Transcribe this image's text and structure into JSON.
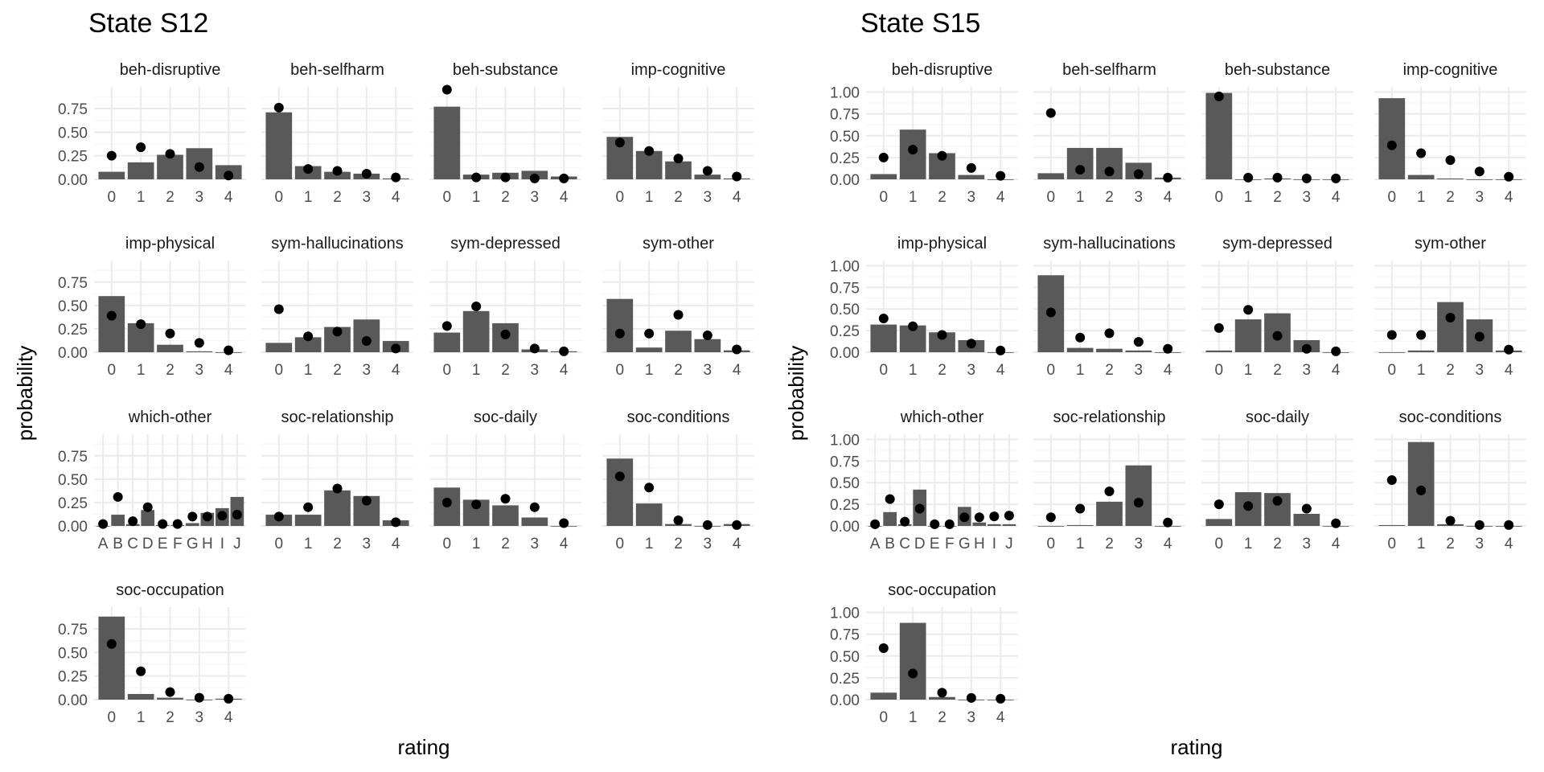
{
  "figure": {
    "ylabel": "probability",
    "xlabel": "rating",
    "colors": {
      "bar": "#595959",
      "dot": "#000000",
      "grid_major": "#ebebeb",
      "grid_minor": "#f5f5f5",
      "text": "#4d4d4d",
      "strip_text": "#1a1a1a"
    }
  },
  "chart_data": [
    {
      "type": "bar",
      "title": "State S12",
      "xlabel": "rating",
      "ylabel": "probability",
      "ylim": [
        0,
        0.98
      ],
      "yticks": [
        0,
        0.25,
        0.5,
        0.75
      ],
      "ytick_labels": [
        "0.00",
        "0.25",
        "0.50",
        "0.75"
      ],
      "grid": true,
      "facets": [
        {
          "name": "beh-disruptive",
          "categories": [
            "0",
            "1",
            "2",
            "3",
            "4"
          ],
          "bars": [
            0.08,
            0.18,
            0.26,
            0.33,
            0.15
          ],
          "points": [
            0.25,
            0.34,
            0.27,
            0.13,
            0.04
          ]
        },
        {
          "name": "beh-selfharm",
          "categories": [
            "0",
            "1",
            "2",
            "3",
            "4"
          ],
          "bars": [
            0.71,
            0.14,
            0.08,
            0.06,
            0.01
          ],
          "points": [
            0.76,
            0.11,
            0.09,
            0.06,
            0.02
          ]
        },
        {
          "name": "beh-substance",
          "categories": [
            "0",
            "1",
            "2",
            "3",
            "4"
          ],
          "bars": [
            0.77,
            0.05,
            0.07,
            0.09,
            0.03
          ],
          "points": [
            0.95,
            0.02,
            0.02,
            0.01,
            0.01
          ]
        },
        {
          "name": "imp-cognitive",
          "categories": [
            "0",
            "1",
            "2",
            "3",
            "4"
          ],
          "bars": [
            0.45,
            0.3,
            0.19,
            0.05,
            0.01
          ],
          "points": [
            0.39,
            0.3,
            0.22,
            0.09,
            0.03
          ]
        },
        {
          "name": "imp-physical",
          "categories": [
            "0",
            "1",
            "2",
            "3",
            "4"
          ],
          "bars": [
            0.6,
            0.31,
            0.08,
            0.01,
            0.0
          ],
          "points": [
            0.39,
            0.3,
            0.2,
            0.1,
            0.02
          ]
        },
        {
          "name": "sym-hallucinations",
          "categories": [
            "0",
            "1",
            "2",
            "3",
            "4"
          ],
          "bars": [
            0.1,
            0.16,
            0.27,
            0.35,
            0.12
          ],
          "points": [
            0.46,
            0.17,
            0.22,
            0.12,
            0.04
          ]
        },
        {
          "name": "sym-depressed",
          "categories": [
            "0",
            "1",
            "2",
            "3",
            "4"
          ],
          "bars": [
            0.21,
            0.44,
            0.31,
            0.03,
            0.01
          ],
          "points": [
            0.28,
            0.49,
            0.19,
            0.04,
            0.01
          ]
        },
        {
          "name": "sym-other",
          "categories": [
            "0",
            "1",
            "2",
            "3",
            "4"
          ],
          "bars": [
            0.57,
            0.05,
            0.23,
            0.14,
            0.02
          ],
          "points": [
            0.2,
            0.2,
            0.4,
            0.18,
            0.03
          ]
        },
        {
          "name": "which-other",
          "categories": [
            "A",
            "B",
            "C",
            "D",
            "E",
            "F",
            "G",
            "H",
            "I",
            "J"
          ],
          "bars": [
            0.0,
            0.12,
            0.02,
            0.17,
            0.01,
            0.01,
            0.03,
            0.14,
            0.19,
            0.31
          ],
          "points": [
            0.02,
            0.31,
            0.05,
            0.2,
            0.02,
            0.02,
            0.1,
            0.1,
            0.11,
            0.12
          ]
        },
        {
          "name": "soc-relationship",
          "categories": [
            "0",
            "1",
            "2",
            "3",
            "4"
          ],
          "bars": [
            0.12,
            0.12,
            0.38,
            0.32,
            0.06
          ],
          "points": [
            0.1,
            0.2,
            0.4,
            0.27,
            0.04
          ]
        },
        {
          "name": "soc-daily",
          "categories": [
            "0",
            "1",
            "2",
            "3",
            "4"
          ],
          "bars": [
            0.41,
            0.28,
            0.22,
            0.09,
            0.0
          ],
          "points": [
            0.25,
            0.23,
            0.29,
            0.2,
            0.03
          ]
        },
        {
          "name": "soc-conditions",
          "categories": [
            "0",
            "1",
            "2",
            "3",
            "4"
          ],
          "bars": [
            0.72,
            0.24,
            0.02,
            0.0,
            0.02
          ],
          "points": [
            0.53,
            0.41,
            0.06,
            0.01,
            0.01
          ]
        },
        {
          "name": "soc-occupation",
          "categories": [
            "0",
            "1",
            "2",
            "3",
            "4"
          ],
          "bars": [
            0.88,
            0.06,
            0.02,
            0.0,
            0.01
          ],
          "points": [
            0.59,
            0.3,
            0.08,
            0.02,
            0.01
          ]
        }
      ]
    },
    {
      "type": "bar",
      "title": "State S15",
      "xlabel": "rating",
      "ylabel": "probability",
      "ylim": [
        0,
        1.06
      ],
      "yticks": [
        0,
        0.25,
        0.5,
        0.75,
        1.0
      ],
      "ytick_labels": [
        "0.00",
        "0.25",
        "0.50",
        "0.75",
        "1.00"
      ],
      "grid": true,
      "facets": [
        {
          "name": "beh-disruptive",
          "categories": [
            "0",
            "1",
            "2",
            "3",
            "4"
          ],
          "bars": [
            0.06,
            0.57,
            0.3,
            0.05,
            0.0
          ],
          "points": [
            0.25,
            0.34,
            0.27,
            0.13,
            0.04
          ]
        },
        {
          "name": "beh-selfharm",
          "categories": [
            "0",
            "1",
            "2",
            "3",
            "4"
          ],
          "bars": [
            0.07,
            0.36,
            0.36,
            0.19,
            0.02
          ],
          "points": [
            0.76,
            0.11,
            0.09,
            0.06,
            0.02
          ]
        },
        {
          "name": "beh-substance",
          "categories": [
            "0",
            "1",
            "2",
            "3",
            "4"
          ],
          "bars": [
            0.99,
            0.0,
            0.01,
            0.0,
            0.0
          ],
          "points": [
            0.95,
            0.02,
            0.02,
            0.01,
            0.01
          ]
        },
        {
          "name": "imp-cognitive",
          "categories": [
            "0",
            "1",
            "2",
            "3",
            "4"
          ],
          "bars": [
            0.93,
            0.05,
            0.01,
            0.0,
            0.0
          ],
          "points": [
            0.39,
            0.3,
            0.22,
            0.09,
            0.03
          ]
        },
        {
          "name": "imp-physical",
          "categories": [
            "0",
            "1",
            "2",
            "3",
            "4"
          ],
          "bars": [
            0.32,
            0.31,
            0.23,
            0.14,
            0.0
          ],
          "points": [
            0.39,
            0.3,
            0.2,
            0.1,
            0.02
          ]
        },
        {
          "name": "sym-hallucinations",
          "categories": [
            "0",
            "1",
            "2",
            "3",
            "4"
          ],
          "bars": [
            0.89,
            0.05,
            0.04,
            0.02,
            0.0
          ],
          "points": [
            0.46,
            0.17,
            0.22,
            0.12,
            0.04
          ]
        },
        {
          "name": "sym-depressed",
          "categories": [
            "0",
            "1",
            "2",
            "3",
            "4"
          ],
          "bars": [
            0.02,
            0.38,
            0.45,
            0.14,
            0.0
          ],
          "points": [
            0.28,
            0.49,
            0.19,
            0.04,
            0.01
          ]
        },
        {
          "name": "sym-other",
          "categories": [
            "0",
            "1",
            "2",
            "3",
            "4"
          ],
          "bars": [
            0.0,
            0.02,
            0.58,
            0.38,
            0.02
          ],
          "points": [
            0.2,
            0.2,
            0.4,
            0.18,
            0.03
          ]
        },
        {
          "name": "which-other",
          "categories": [
            "A",
            "B",
            "C",
            "D",
            "E",
            "F",
            "G",
            "H",
            "I",
            "J"
          ],
          "bars": [
            0.0,
            0.16,
            0.02,
            0.42,
            0.0,
            0.0,
            0.22,
            0.04,
            0.02,
            0.02
          ],
          "points": [
            0.02,
            0.31,
            0.05,
            0.2,
            0.02,
            0.02,
            0.1,
            0.1,
            0.11,
            0.12
          ]
        },
        {
          "name": "soc-relationship",
          "categories": [
            "0",
            "1",
            "2",
            "3",
            "4"
          ],
          "bars": [
            0.0,
            0.01,
            0.28,
            0.7,
            0.0
          ],
          "points": [
            0.1,
            0.2,
            0.4,
            0.27,
            0.04
          ]
        },
        {
          "name": "soc-daily",
          "categories": [
            "0",
            "1",
            "2",
            "3",
            "4"
          ],
          "bars": [
            0.08,
            0.39,
            0.38,
            0.14,
            0.0
          ],
          "points": [
            0.25,
            0.23,
            0.29,
            0.2,
            0.03
          ]
        },
        {
          "name": "soc-conditions",
          "categories": [
            "0",
            "1",
            "2",
            "3",
            "4"
          ],
          "bars": [
            0.01,
            0.97,
            0.02,
            0.0,
            0.0
          ],
          "points": [
            0.53,
            0.41,
            0.06,
            0.01,
            0.01
          ]
        },
        {
          "name": "soc-occupation",
          "categories": [
            "0",
            "1",
            "2",
            "3",
            "4"
          ],
          "bars": [
            0.08,
            0.88,
            0.03,
            0.0,
            0.0
          ],
          "points": [
            0.59,
            0.3,
            0.08,
            0.02,
            0.01
          ]
        }
      ]
    }
  ]
}
